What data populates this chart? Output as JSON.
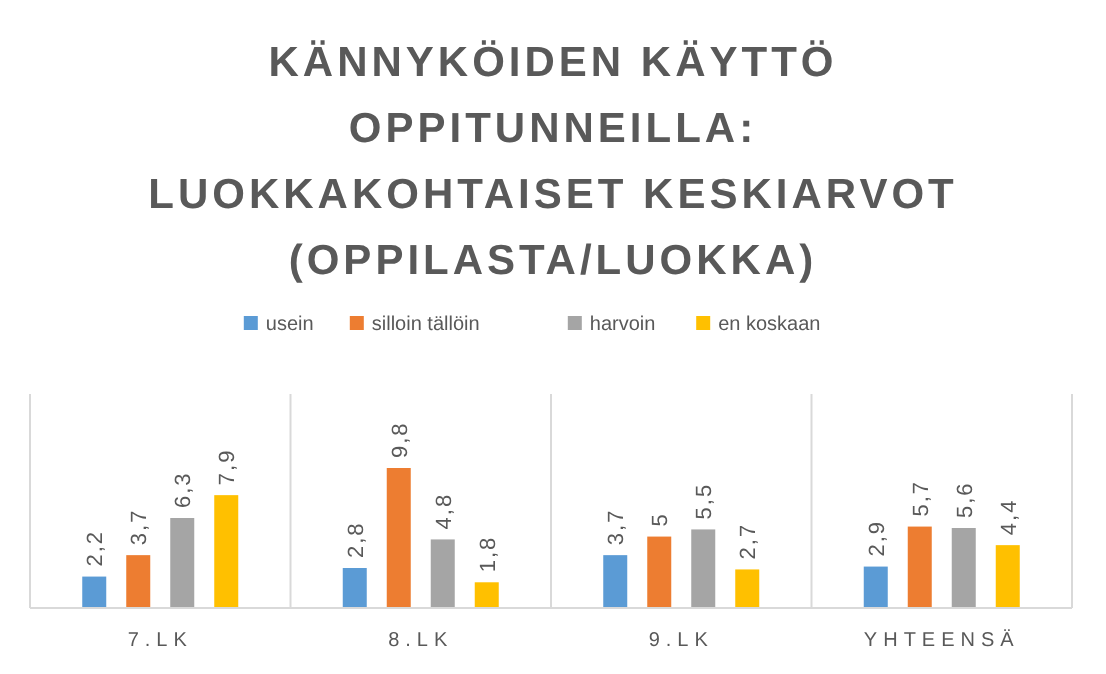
{
  "chart_data": {
    "type": "bar",
    "title": "KÄNNYKÖIDEN KÄYTTÖ\nOPPITUNNEILLA:\nLUOKKAKOHTAISET KESKIARVOT\n(OPPILASTA/LUOKKA)",
    "categories": [
      "7.LK",
      "8.LK",
      "9.LK",
      "YHTEENSÄ"
    ],
    "series": [
      {
        "name": "usein",
        "color": "#5b9bd5",
        "values": [
          2.2,
          2.8,
          3.7,
          2.9
        ],
        "value_labels": [
          "2,2",
          "2,8",
          "3,7",
          "2,9"
        ]
      },
      {
        "name": "silloin tällöin",
        "color": "#ed7d31",
        "values": [
          3.7,
          9.8,
          5,
          5.7
        ],
        "value_labels": [
          "3,7",
          "9,8",
          "5",
          "5,7"
        ]
      },
      {
        "name": "harvoin",
        "color": "#a5a5a5",
        "values": [
          6.3,
          4.8,
          5.5,
          5.6
        ],
        "value_labels": [
          "6,3",
          "4,8",
          "5,5",
          "5,6"
        ]
      },
      {
        "name": "en koskaan",
        "color": "#ffc000",
        "values": [
          7.9,
          1.8,
          2.7,
          4.4
        ],
        "value_labels": [
          "7,9",
          "1,8",
          "2,7",
          "4,4"
        ]
      }
    ],
    "grid": "x",
    "legend": "top"
  }
}
